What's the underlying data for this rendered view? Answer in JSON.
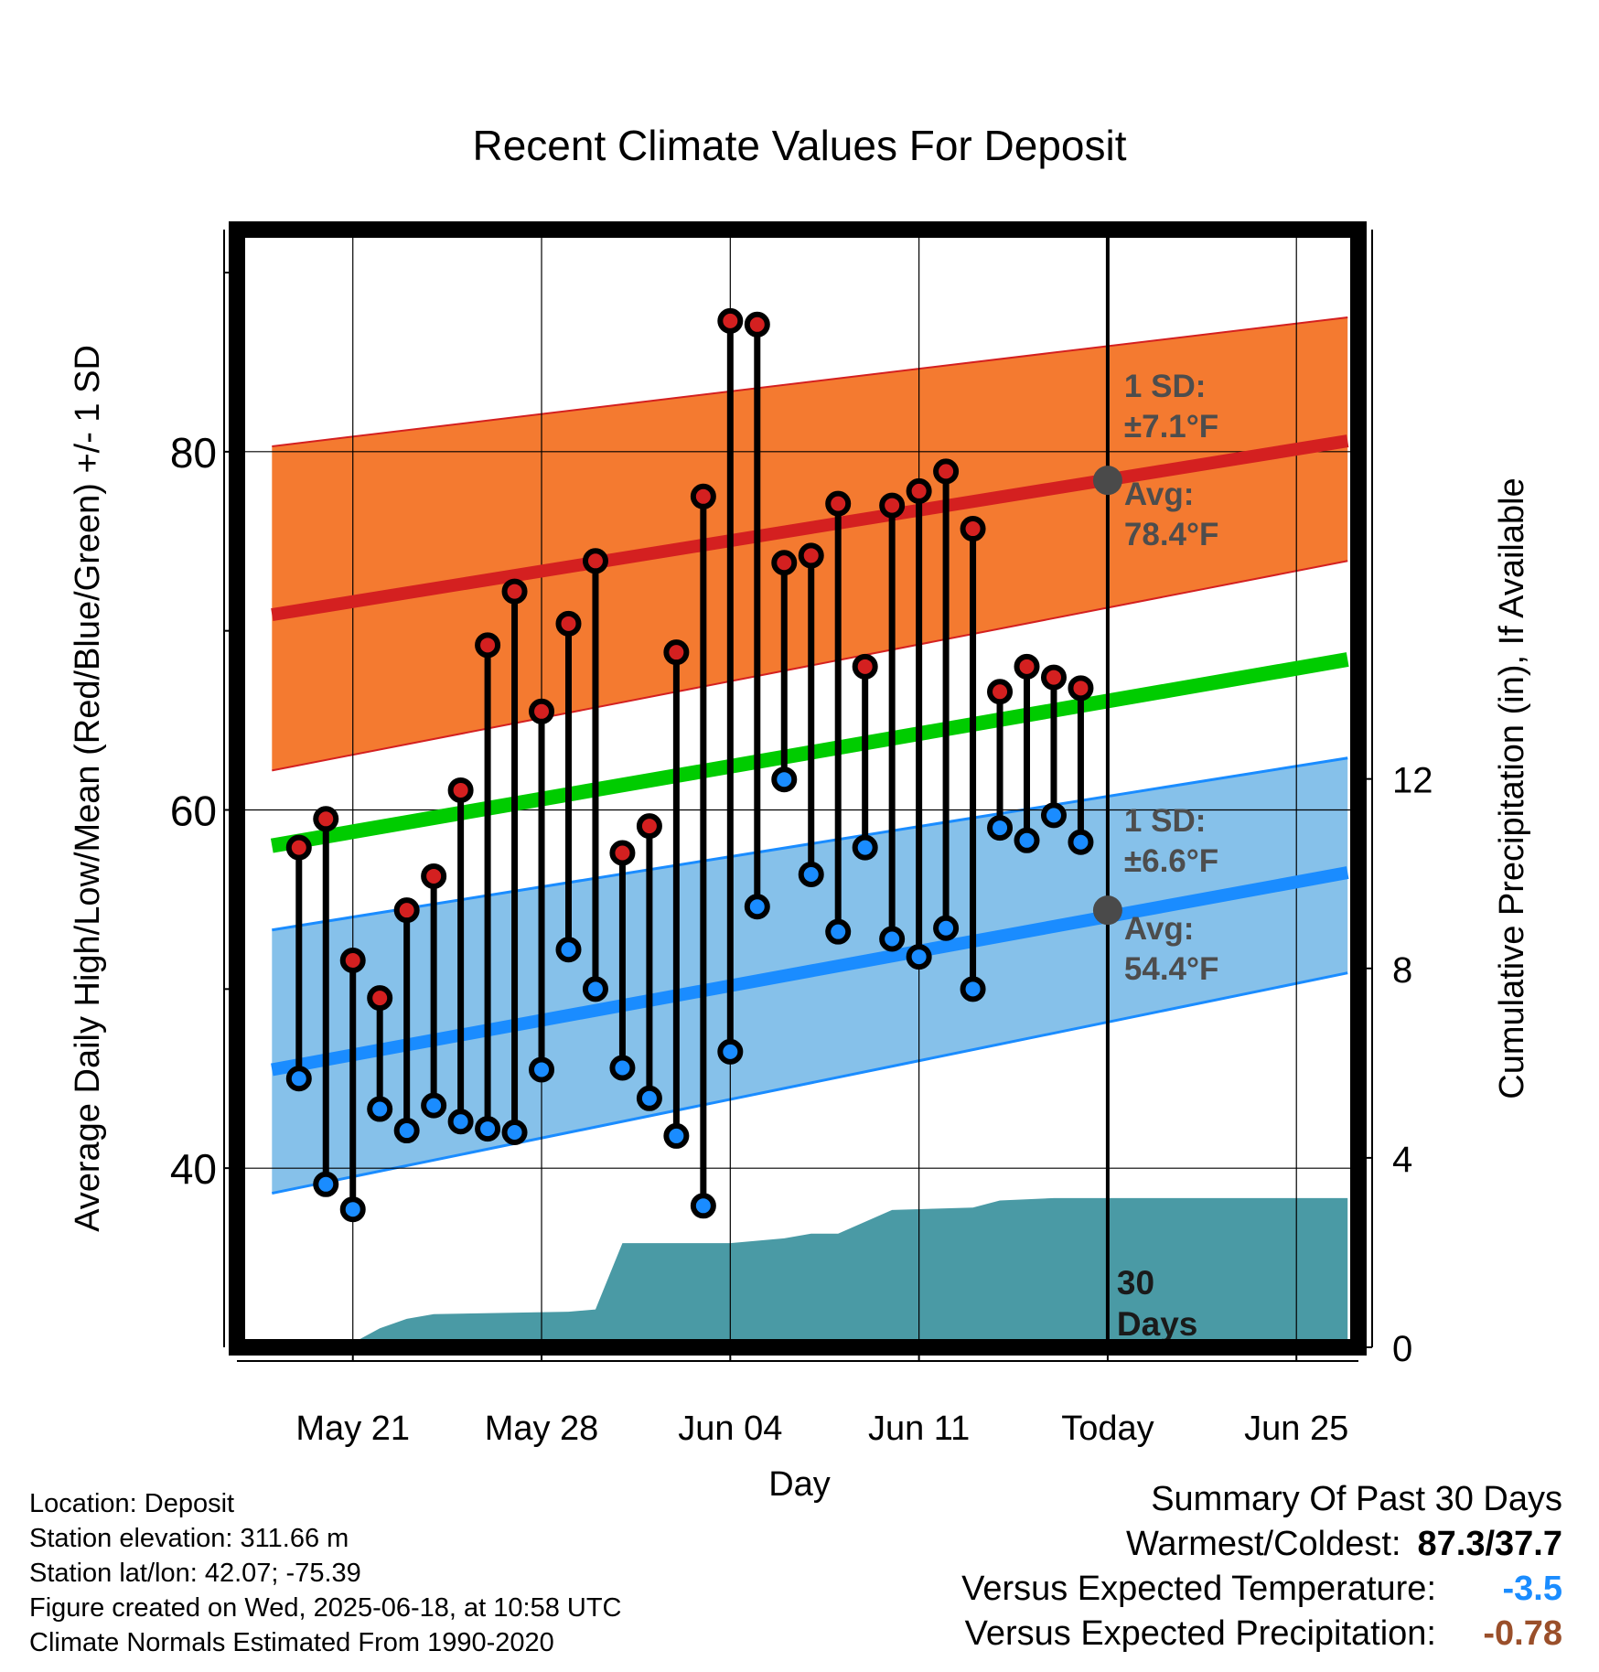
{
  "chart_data": {
    "type": "line",
    "title": "Recent Climate Values For Deposit",
    "xlabel": "Day",
    "ylabel": "Average Daily High/Low/Mean (Red/Blue/Green) +/- 1 SD",
    "y2label": "Cumulative Precipitation (in), If Available",
    "xlim": [
      -4.3,
      37.3
    ],
    "ylim": [
      30,
      92.4
    ],
    "y2lim": [
      0,
      23.6
    ],
    "x_ticks": [
      {
        "x": 0,
        "label": "May 21"
      },
      {
        "x": 7,
        "label": "May 28"
      },
      {
        "x": 14,
        "label": "Jun 04"
      },
      {
        "x": 21,
        "label": "Jun 11"
      },
      {
        "x": 28,
        "label": "Today"
      },
      {
        "x": 35,
        "label": "Jun 25"
      }
    ],
    "y_ticks": [
      40,
      60,
      80
    ],
    "y_minor_ticks": [
      50,
      70,
      90
    ],
    "y2_ticks": [
      0,
      4,
      8,
      12
    ],
    "x_start": -3,
    "x_end": 36.9,
    "today_x": 28,
    "normals": {
      "high_avg": [
        70.9,
        80.6
      ],
      "high_sd_upper": [
        80.3,
        87.5
      ],
      "high_sd_lower": [
        62.2,
        73.9
      ],
      "mean_avg": [
        58.0,
        68.4
      ],
      "low_avg": [
        45.5,
        56.5
      ],
      "low_sd_upper": [
        53.3,
        62.9
      ],
      "low_sd_lower": [
        38.6,
        50.9
      ]
    },
    "high_color": "#d42020",
    "high_band_color": "#f47a30",
    "low_color": "#1a8cff",
    "low_band_color": "#86c1ea",
    "mean_color": "#00cc00",
    "precip_color": "#4a9aa5",
    "daily": [
      {
        "x": -2,
        "high": 57.9,
        "low": 45.0
      },
      {
        "x": -1,
        "high": 59.5,
        "low": 39.1
      },
      {
        "x": 0,
        "high": 51.6,
        "low": 37.7
      },
      {
        "x": 1,
        "high": 49.5,
        "low": 43.3
      },
      {
        "x": 2,
        "high": 54.4,
        "low": 42.1
      },
      {
        "x": 3,
        "high": 56.3,
        "low": 43.5
      },
      {
        "x": 4,
        "high": 61.1,
        "low": 42.6
      },
      {
        "x": 5,
        "high": 69.2,
        "low": 42.2
      },
      {
        "x": 6,
        "high": 72.2,
        "low": 42.0
      },
      {
        "x": 7,
        "high": 65.5,
        "low": 45.5
      },
      {
        "x": 8,
        "high": 70.4,
        "low": 52.2
      },
      {
        "x": 9,
        "high": 73.9,
        "low": 50.0
      },
      {
        "x": 10,
        "high": 57.6,
        "low": 45.6
      },
      {
        "x": 11,
        "high": 59.1,
        "low": 43.9
      },
      {
        "x": 12,
        "high": 68.8,
        "low": 41.8
      },
      {
        "x": 13,
        "high": 77.5,
        "low": 37.9
      },
      {
        "x": 14,
        "high": 87.3,
        "low": 46.5
      },
      {
        "x": 15,
        "high": 87.1,
        "low": 54.6
      },
      {
        "x": 16,
        "high": 73.8,
        "low": 61.7
      },
      {
        "x": 17,
        "high": 74.2,
        "low": 56.4
      },
      {
        "x": 18,
        "high": 77.1,
        "low": 53.2
      },
      {
        "x": 19,
        "high": 68.0,
        "low": 57.9
      },
      {
        "x": 20,
        "high": 77.0,
        "low": 52.8
      },
      {
        "x": 21,
        "high": 77.8,
        "low": 51.8
      },
      {
        "x": 22,
        "high": 78.9,
        "low": 53.4
      },
      {
        "x": 23,
        "high": 75.7,
        "low": 50.0
      },
      {
        "x": 24,
        "high": 66.6,
        "low": 59.0
      },
      {
        "x": 25,
        "high": 68.0,
        "low": 58.3
      },
      {
        "x": 26,
        "high": 67.4,
        "low": 59.7
      },
      {
        "x": 27,
        "high": 66.8,
        "low": 58.2
      }
    ],
    "precip_cumulative": [
      {
        "x": -0.3,
        "v": 0.0
      },
      {
        "x": 1,
        "v": 0.4
      },
      {
        "x": 2,
        "v": 0.6
      },
      {
        "x": 3,
        "v": 0.7
      },
      {
        "x": 8,
        "v": 0.75
      },
      {
        "x": 9,
        "v": 0.8
      },
      {
        "x": 10,
        "v": 2.2
      },
      {
        "x": 14,
        "v": 2.2
      },
      {
        "x": 16,
        "v": 2.3
      },
      {
        "x": 17,
        "v": 2.4
      },
      {
        "x": 18,
        "v": 2.4
      },
      {
        "x": 20,
        "v": 2.9
      },
      {
        "x": 23,
        "v": 2.95
      },
      {
        "x": 24,
        "v": 3.1
      },
      {
        "x": 26,
        "v": 3.15
      },
      {
        "x": 36.9,
        "v": 3.15
      }
    ],
    "annotations": {
      "high_sd": [
        "1 SD:",
        "±7.1°F"
      ],
      "high_avg": [
        "Avg:",
        "78.4°F"
      ],
      "low_sd": [
        "1 SD:",
        "±6.6°F"
      ],
      "low_avg": [
        "Avg:",
        "54.4°F"
      ],
      "days": [
        "30",
        "Days"
      ]
    },
    "today_high_avg": 78.4,
    "today_low_avg": 54.4
  },
  "footer": {
    "location": "Location: Deposit",
    "elevation": "Station elevation: 311.66 m",
    "latlon": "Station lat/lon: 42.07; -75.39",
    "created": "Figure created on Wed, 2025-06-18, at 10:58 UTC",
    "normals": "Climate Normals Estimated From 1990-2020"
  },
  "summary": {
    "title": "Summary Of Past 30 Days",
    "rows": [
      {
        "label": "Warmest/Coldest:",
        "value": "87.3/37.7",
        "color": "#000000"
      },
      {
        "label": "Versus Expected Temperature:",
        "value": "-3.5",
        "color": "#1a8cff"
      },
      {
        "label": "Versus Expected Precipitation:",
        "value": "-0.78",
        "color": "#9a4f2a"
      }
    ]
  }
}
